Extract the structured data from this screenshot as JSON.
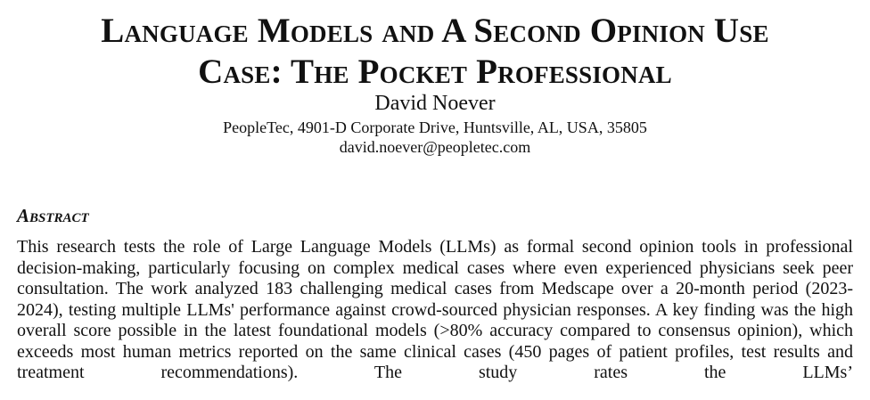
{
  "paper": {
    "title_line1": "Language Models and A Second Opinion Use",
    "title_line2": "Case: The Pocket Professional",
    "author": "David Noever",
    "affiliation": "PeopleTec, 4901-D Corporate Drive, Huntsville, AL, USA, 35805",
    "email": "david.noever@peopletec.com"
  },
  "abstract": {
    "heading": "Abstract",
    "text": "This research tests the role of Large Language Models (LLMs) as formal second opinion tools in professional decision-making, particularly focusing on complex medical cases where even experienced physicians seek peer consultation. The work analyzed 183 challenging medical cases from Medscape over a 20-month period (2023-2024), testing multiple LLMs' performance against crowd-sourced physician responses. A key finding was the high overall score possible in the latest foundational models (>80% accuracy compared to consensus opinion), which exceeds most human metrics reported on the same clinical cases (450 pages of patient profiles, test results and treatment recommendations). The study rates the LLMs’"
  }
}
